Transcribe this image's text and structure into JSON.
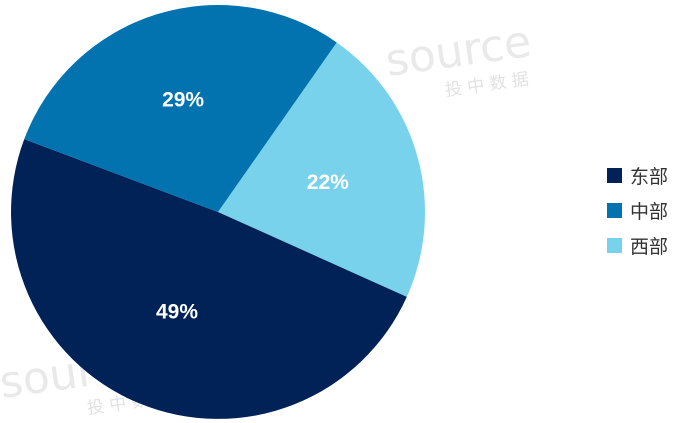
{
  "chart_data": {
    "type": "pie",
    "categories": [
      "东部",
      "中部",
      "西部"
    ],
    "values": [
      49,
      29,
      22
    ],
    "data_labels": [
      "49%",
      "29%",
      "22%"
    ],
    "colors": [
      "#002257",
      "#0373b0",
      "#78d2ec"
    ],
    "title": "",
    "legend_position": "right"
  },
  "watermark": {
    "brand": "source",
    "subtitle": "投 中 数 据"
  }
}
